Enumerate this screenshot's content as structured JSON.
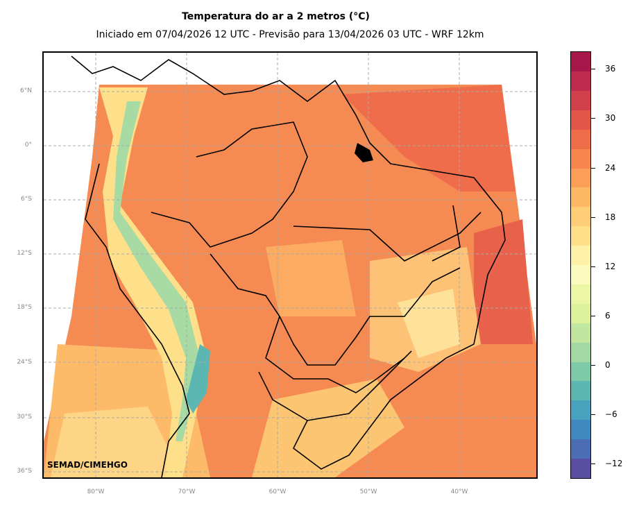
{
  "header": {
    "title": "Temperatura do ar a 2 metros (°C)",
    "subtitle": "Iniciado em 07/04/2026 12 UTC - Previsão para 13/04/2026 03 UTC - WRF 12km"
  },
  "map": {
    "credit": "SEMAD/CIMEHGO",
    "lat_labels": [
      "6°N",
      "0°",
      "6°S",
      "12°S",
      "18°S",
      "24°S",
      "30°S",
      "36°S"
    ],
    "lon_labels": [
      "80°W",
      "70°W",
      "60°W",
      "50°W",
      "40°W"
    ]
  },
  "colorbar": {
    "tick_labels": [
      "36",
      "30",
      "24",
      "18",
      "12",
      "6",
      "0",
      "−6",
      "−12"
    ],
    "colors": [
      "#5a4fa3",
      "#4a6db4",
      "#3f88c0",
      "#49a3bf",
      "#5cb6b2",
      "#7ec9a7",
      "#a1d8a4",
      "#c1e6a0",
      "#dcf19a",
      "#ecf7a6",
      "#fbfbc0",
      "#fff1a8",
      "#fee08b",
      "#fdcd78",
      "#fdb863",
      "#fb9e58",
      "#f7864f",
      "#ef6e4a",
      "#e2564a",
      "#d1404b",
      "#c02c4d",
      "#a8174a"
    ],
    "accent_colors": {
      "warm": "#f47a48",
      "mild": "#fdcd78",
      "cold": "#49a3bf",
      "lowland": "#f7864f"
    }
  }
}
